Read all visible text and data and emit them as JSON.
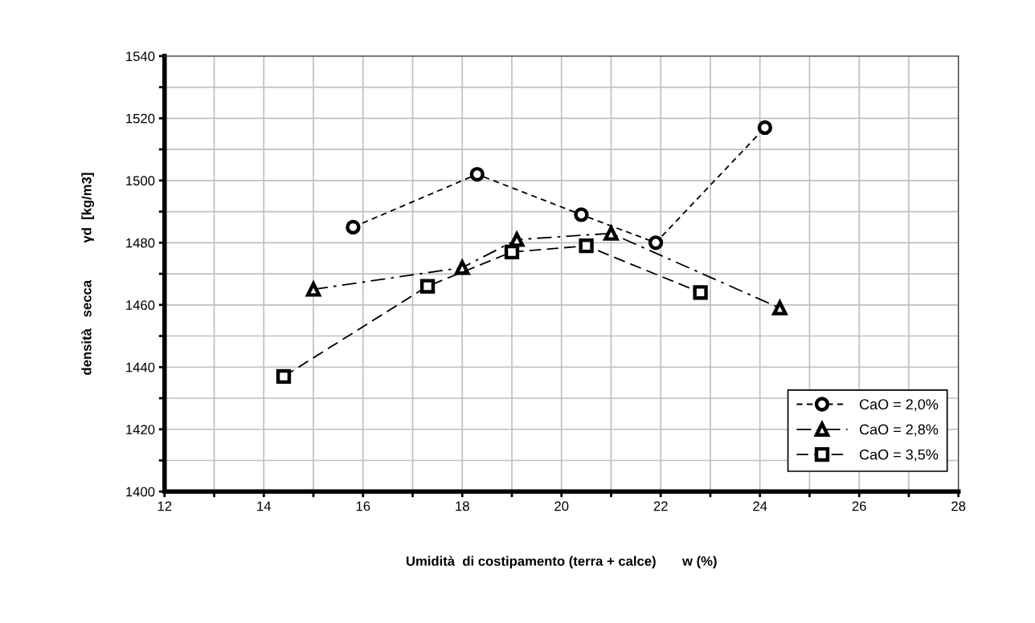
{
  "chart_data": {
    "type": "line",
    "xlabel": "Umidità  di costipamento (terra + calce)       w (%)",
    "ylabel": "densità   secca          γd  [kg/m3]",
    "xlim": [
      12,
      28
    ],
    "xticks": [
      12,
      {
        "value": 13,
        "label": null
      },
      14,
      {
        "value": 15,
        "label": null
      },
      16,
      {
        "value": 17,
        "label": null
      },
      18,
      {
        "value": 19,
        "label": null
      },
      20,
      {
        "value": 21,
        "label": null
      },
      22,
      {
        "value": 23,
        "label": null
      },
      24,
      {
        "value": 25,
        "label": null
      },
      26,
      {
        "value": 27,
        "label": null
      },
      28
    ],
    "ylim": [
      1400,
      1540
    ],
    "yticks": [
      1400,
      {
        "value": 1410,
        "label": null
      },
      1420,
      {
        "value": 1430,
        "label": null
      },
      1440,
      {
        "value": 1450,
        "label": null
      },
      1460,
      {
        "value": 1470,
        "label": null
      },
      1480,
      {
        "value": 1490,
        "label": null
      },
      1500,
      {
        "value": 1510,
        "label": null
      },
      1520,
      {
        "value": 1530,
        "label": null
      },
      1540
    ],
    "grid": true,
    "legend": "bottom right",
    "series": [
      {
        "name": "CaO = 2,0%",
        "color": "#000000",
        "marker": "circle",
        "line_style": "dotted",
        "x": [
          15.8,
          18.3,
          20.4,
          21.9,
          24.1
        ],
        "values": [
          1485,
          1502,
          1489,
          1480,
          1517
        ]
      },
      {
        "name": "CaO = 2,8%",
        "color": "#000000",
        "marker": "triangle",
        "line_style": "dashdot",
        "x": [
          15.0,
          18.0,
          19.1,
          21.0,
          24.4
        ],
        "values": [
          1465,
          1472,
          1481,
          1483,
          1459
        ]
      },
      {
        "name": "CaO = 3,5%",
        "color": "#000000",
        "marker": "square",
        "line_style": "dashed",
        "x": [
          14.4,
          17.3,
          19.0,
          20.5,
          22.8
        ],
        "values": [
          1437,
          1466,
          1477,
          1479,
          1464
        ]
      }
    ]
  }
}
